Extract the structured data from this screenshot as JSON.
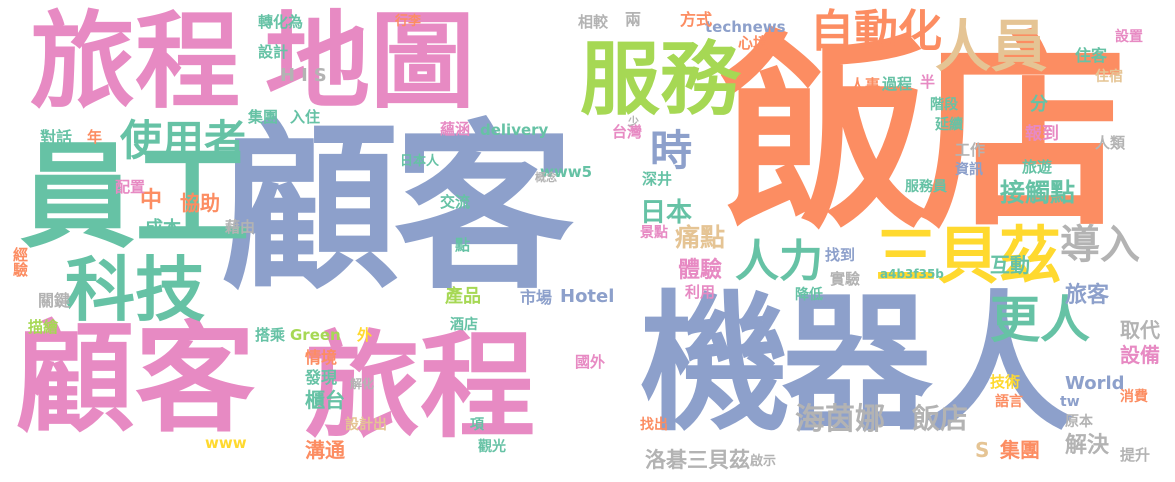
{
  "palette": {
    "orange": "#fc8d62",
    "blue": "#8da0cb",
    "pink": "#e78ac3",
    "green": "#a6d854",
    "teal": "#66c2a5",
    "yellow": "#ffd92f",
    "tan": "#e5c494",
    "gray": "#b3b3b3"
  },
  "words": [
    {
      "text": "飯店",
      "color": "orange"
    },
    {
      "text": "顧客",
      "color": "blue"
    },
    {
      "text": "機器人",
      "color": "blue"
    },
    {
      "text": "旅程",
      "color": "pink"
    },
    {
      "text": "地圖",
      "color": "pink"
    },
    {
      "text": "服務",
      "color": "green"
    },
    {
      "text": "員工",
      "color": "teal"
    },
    {
      "text": "顧客",
      "color": "pink"
    },
    {
      "text": "旅程",
      "color": "pink"
    },
    {
      "text": "科技",
      "color": "teal"
    },
    {
      "text": "自動化",
      "color": "orange"
    },
    {
      "text": "人員",
      "color": "tan"
    },
    {
      "text": "三貝茲",
      "color": "yellow"
    },
    {
      "text": "導入",
      "color": "gray"
    },
    {
      "text": "人力",
      "color": "teal"
    },
    {
      "text": "更人",
      "color": "teal"
    },
    {
      "text": "使用者",
      "color": "teal"
    },
    {
      "text": "時",
      "color": "blue"
    },
    {
      "text": "海茵娜",
      "color": "gray"
    },
    {
      "text": "飯店",
      "color": "gray"
    },
    {
      "text": "洛碁三貝茲",
      "color": "gray"
    },
    {
      "text": "接觸點",
      "color": "teal"
    },
    {
      "text": "痛點",
      "color": "tan"
    },
    {
      "text": "體驗",
      "color": "pink"
    },
    {
      "text": "日本",
      "color": "teal"
    },
    {
      "text": "旅客",
      "color": "blue"
    },
    {
      "text": "互動",
      "color": "teal"
    },
    {
      "text": "取代",
      "color": "gray"
    },
    {
      "text": "設備",
      "color": "pink"
    },
    {
      "text": "解決",
      "color": "gray"
    },
    {
      "text": "溝通",
      "color": "orange"
    },
    {
      "text": "櫃台",
      "color": "teal"
    },
    {
      "text": "技術",
      "color": "yellow"
    },
    {
      "text": "集團",
      "color": "orange"
    },
    {
      "text": "協助",
      "color": "orange"
    },
    {
      "text": "中",
      "color": "orange"
    },
    {
      "text": "成本",
      "color": "teal"
    },
    {
      "text": "產品",
      "color": "green"
    },
    {
      "text": "市場",
      "color": "blue"
    },
    {
      "text": "Hotel",
      "color": "blue"
    },
    {
      "text": "technews",
      "color": "blue"
    },
    {
      "text": "delivery",
      "color": "teal"
    },
    {
      "text": "www5",
      "color": "teal"
    },
    {
      "text": "www",
      "color": "yellow"
    },
    {
      "text": "World",
      "color": "blue"
    },
    {
      "text": "Green",
      "color": "green"
    },
    {
      "text": "S",
      "color": "tan"
    },
    {
      "text": "HIS",
      "color": "gray"
    },
    {
      "text": "對話",
      "color": "teal"
    },
    {
      "text": "經驗",
      "color": "orange"
    },
    {
      "text": "關鍵",
      "color": "gray"
    },
    {
      "text": "描繪",
      "color": "green"
    },
    {
      "text": "配置",
      "color": "pink"
    },
    {
      "text": "藉由",
      "color": "gray"
    },
    {
      "text": "年",
      "color": "orange"
    },
    {
      "text": "搭乘",
      "color": "teal"
    },
    {
      "text": "外",
      "color": "yellow"
    },
    {
      "text": "情境",
      "color": "orange"
    },
    {
      "text": "發現",
      "color": "teal"
    },
    {
      "text": "設計出",
      "color": "tan"
    },
    {
      "text": "集團",
      "color": "teal"
    },
    {
      "text": "入住",
      "color": "teal"
    },
    {
      "text": "設計",
      "color": "teal"
    },
    {
      "text": "轉化為",
      "color": "teal"
    },
    {
      "text": "行李",
      "color": "orange"
    },
    {
      "text": "相較",
      "color": "gray"
    },
    {
      "text": "兩",
      "color": "gray"
    },
    {
      "text": "方式",
      "color": "orange"
    },
    {
      "text": "心境",
      "color": "orange"
    },
    {
      "text": "半",
      "color": "pink"
    },
    {
      "text": "過程",
      "color": "teal"
    },
    {
      "text": "人事",
      "color": "orange"
    },
    {
      "text": "階段",
      "color": "teal"
    },
    {
      "text": "延續",
      "color": "teal"
    },
    {
      "text": "分",
      "color": "teal"
    },
    {
      "text": "報到",
      "color": "pink"
    },
    {
      "text": "旅遊",
      "color": "teal"
    },
    {
      "text": "工作",
      "color": "gray"
    },
    {
      "text": "人類",
      "color": "gray"
    },
    {
      "text": "資訊",
      "color": "blue"
    },
    {
      "text": "服務員",
      "color": "teal"
    },
    {
      "text": "住客",
      "color": "teal"
    },
    {
      "text": "設置",
      "color": "pink"
    },
    {
      "text": "住宿",
      "color": "tan"
    },
    {
      "text": "找到",
      "color": "blue"
    },
    {
      "text": "實驗",
      "color": "gray"
    },
    {
      "text": "降低",
      "color": "teal"
    },
    {
      "text": "利用",
      "color": "pink"
    },
    {
      "text": "景點",
      "color": "pink"
    },
    {
      "text": "交流",
      "color": "teal"
    },
    {
      "text": "點",
      "color": "teal"
    },
    {
      "text": "深井",
      "color": "teal"
    },
    {
      "text": "台灣",
      "color": "pink"
    },
    {
      "text": "蘊涵",
      "color": "pink"
    },
    {
      "text": "日本人",
      "color": "teal"
    },
    {
      "text": "酒店",
      "color": "teal"
    },
    {
      "text": "國外",
      "color": "pink"
    },
    {
      "text": "項",
      "color": "teal"
    },
    {
      "text": "觀光",
      "color": "teal"
    },
    {
      "text": "找出",
      "color": "orange"
    },
    {
      "text": "啟示",
      "color": "gray"
    },
    {
      "text": "提升",
      "color": "gray"
    },
    {
      "text": "消費",
      "color": "orange"
    },
    {
      "text": "原本",
      "color": "gray"
    },
    {
      "text": "語言",
      "color": "orange"
    },
    {
      "text": "tw",
      "color": "blue"
    },
    {
      "text": "a4b3f35b",
      "color": "teal"
    },
    {
      "text": "概念",
      "color": "gray"
    },
    {
      "text": "少",
      "color": "gray"
    },
    {
      "text": "解化",
      "color": "gray"
    }
  ]
}
